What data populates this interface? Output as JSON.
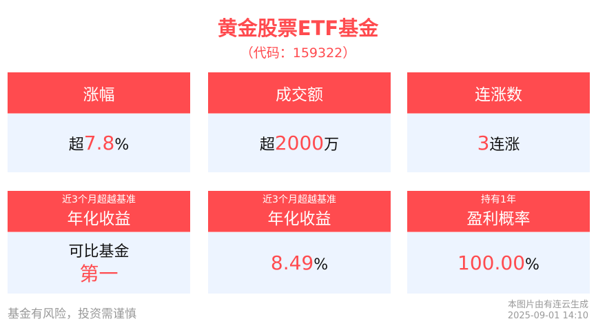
{
  "title": "黄金股票ETF基金",
  "code": "（代码：159322）",
  "colors": {
    "accent": "#ff4b4f",
    "card_bg": "#edf4ff"
  },
  "cards": [
    {
      "small": "",
      "label": "涨幅",
      "prefix": "超",
      "value": "7.8",
      "suffix": "%"
    },
    {
      "small": "",
      "label": "成交额",
      "prefix": "超",
      "value": "2000",
      "suffix": "万"
    },
    {
      "small": "",
      "label": "连涨数",
      "prefix": "",
      "value": "3",
      "suffix": "连涨"
    },
    {
      "small": "近3个月超越基准",
      "label": "年化收益",
      "line1": "可比基金",
      "value": "第一"
    },
    {
      "small": "近3个月超越基准",
      "label": "年化收益",
      "prefix": "",
      "value": "8.49",
      "suffix": "%"
    },
    {
      "small": "持有1年",
      "label": "盈利概率",
      "prefix": "",
      "value": "100.00",
      "suffix": "%"
    }
  ],
  "footer": {
    "risk": "基金有风险，投资需谨慎",
    "source": "本图片由有连云生成",
    "timestamp": "2025-09-01 14:10"
  }
}
